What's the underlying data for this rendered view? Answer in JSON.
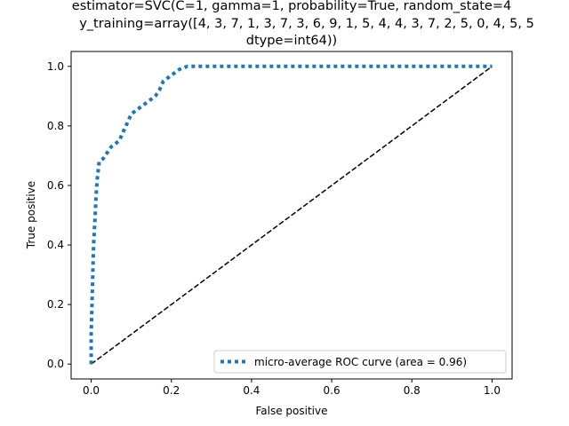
{
  "chart_data": {
    "type": "line",
    "title_lines": [
      "estimator=SVC(C=1, gamma=1, probability=True, random_state=4",
      "y_training=array([4, 3, 7, 1, 3, 7, 3, 6, 9, 1, 5, 4, 4, 3, 7, 2, 5, 0, 4, 5, 5",
      "dtype=int64))"
    ],
    "xlabel": "False positive",
    "ylabel": "True positive",
    "xlim": [
      -0.05,
      1.05
    ],
    "ylim": [
      -0.05,
      1.05
    ],
    "xticks": [
      "0.0",
      "0.2",
      "0.4",
      "0.6",
      "0.8",
      "1.0"
    ],
    "yticks": [
      "0.0",
      "0.2",
      "0.4",
      "0.6",
      "0.8",
      "1.0"
    ],
    "grid": false,
    "legend_position": "lower-right",
    "series": [
      {
        "name": "micro-average ROC curve (area = 0.96)",
        "style": "dotted",
        "color": "#1f77b4",
        "x": [
          0.0,
          0.0,
          0.002,
          0.004,
          0.005,
          0.006,
          0.008,
          0.01,
          0.012,
          0.015,
          0.02,
          0.03,
          0.05,
          0.07,
          0.08,
          0.09,
          0.1,
          0.12,
          0.14,
          0.16,
          0.17,
          0.18,
          0.2,
          0.22,
          0.24,
          0.3,
          0.4,
          0.5,
          0.6,
          0.7,
          0.8,
          0.9,
          1.0
        ],
        "y": [
          0.0,
          0.1,
          0.2,
          0.3,
          0.35,
          0.4,
          0.45,
          0.5,
          0.56,
          0.62,
          0.68,
          0.69,
          0.73,
          0.75,
          0.78,
          0.81,
          0.84,
          0.86,
          0.88,
          0.9,
          0.92,
          0.95,
          0.97,
          0.99,
          1.0,
          1.0,
          1.0,
          1.0,
          1.0,
          1.0,
          1.0,
          1.0,
          1.0
        ]
      },
      {
        "name": "",
        "style": "dashed",
        "color": "#000000",
        "x": [
          0.0,
          1.0
        ],
        "y": [
          0.0,
          1.0
        ]
      }
    ]
  }
}
